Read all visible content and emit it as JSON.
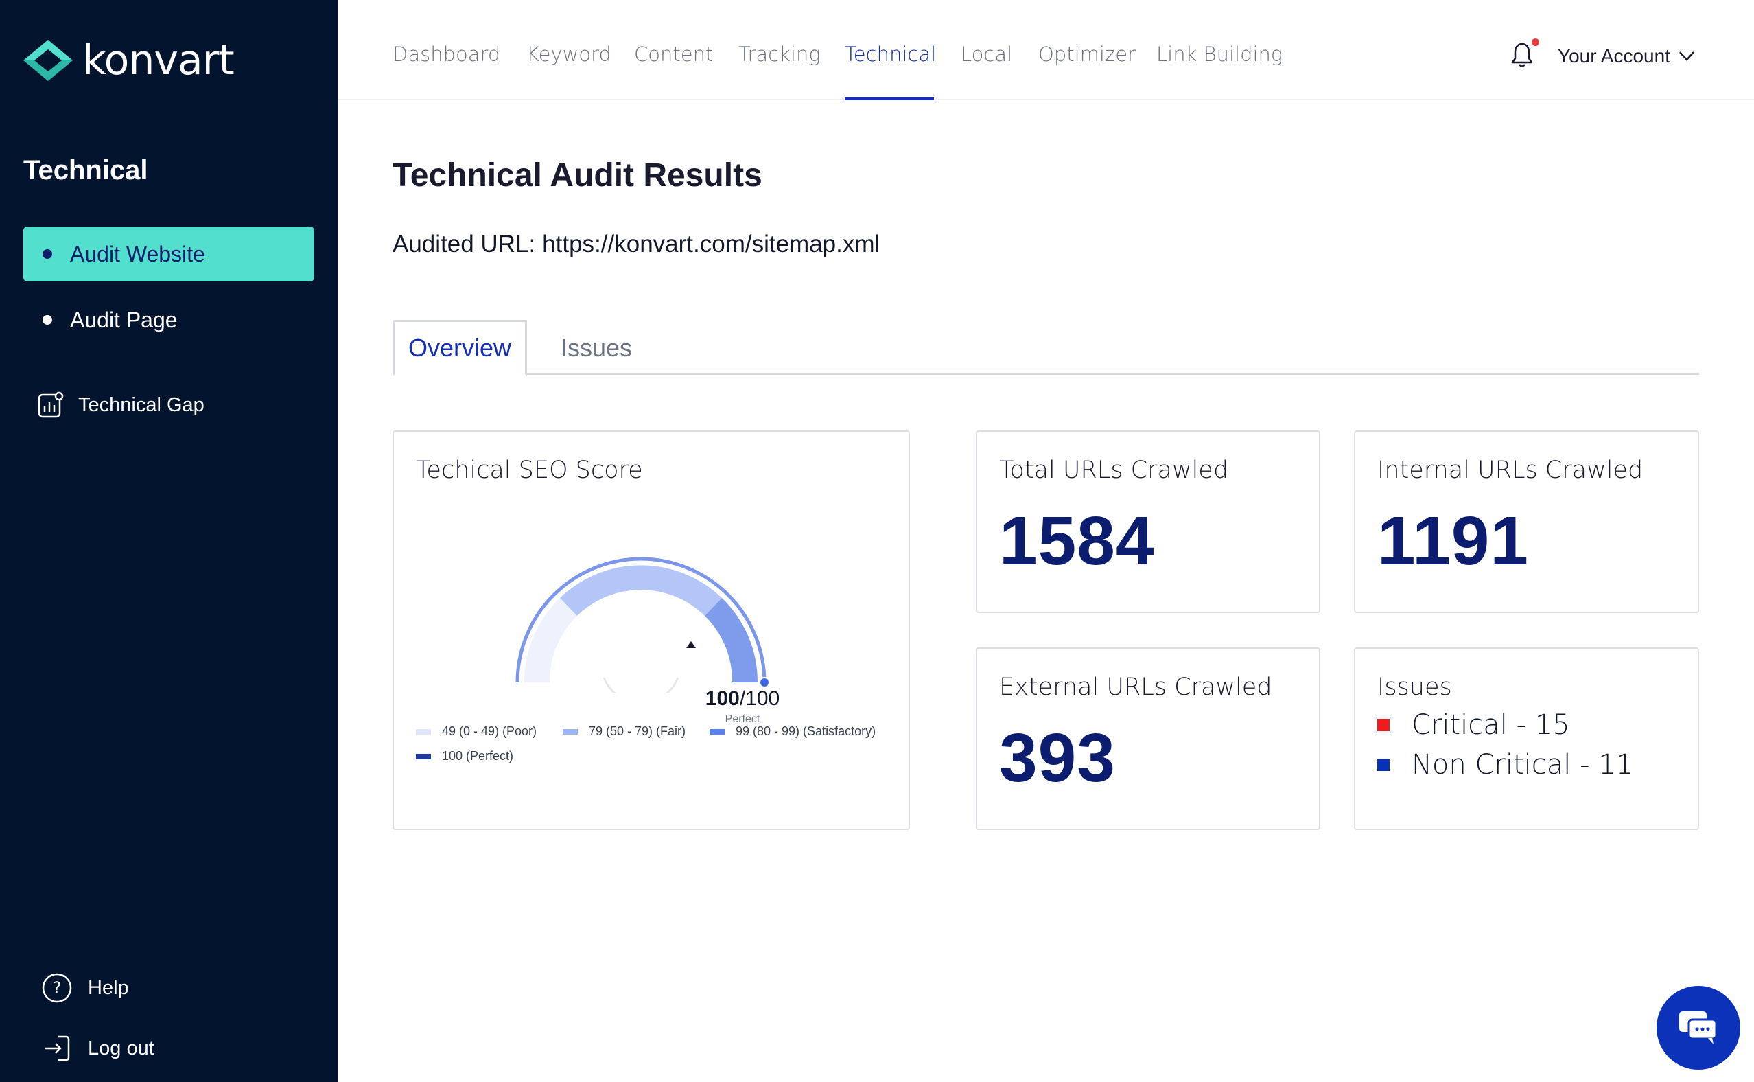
{
  "brand": {
    "name": "konvart",
    "accent": "#53dfcd",
    "sidebar_bg": "#03142e",
    "primary": "#1530b8"
  },
  "sidebar": {
    "heading": "Technical",
    "items": [
      {
        "label": "Audit Website",
        "active": true
      },
      {
        "label": "Audit Page",
        "active": false
      }
    ],
    "gap_item": {
      "label": "Technical Gap",
      "icon": "chart-icon"
    },
    "bottom": [
      {
        "label": "Help",
        "icon": "help-icon"
      },
      {
        "label": "Log out",
        "icon": "logout-icon"
      }
    ]
  },
  "nav": {
    "items": [
      "Dashboard",
      "Keyword",
      "Content",
      "Tracking",
      "Technical",
      "Local",
      "Optimizer",
      "Link Building"
    ],
    "active": "Technical",
    "account_label": "Your Account"
  },
  "main": {
    "title": "Technical Audit Results",
    "audited_label": "Audited URL:",
    "audited_url": "https://konvart.com/sitemap.xml",
    "tabs": [
      {
        "label": "Overview",
        "active": true
      },
      {
        "label": "Issues",
        "active": false
      }
    ]
  },
  "score_card": {
    "title": "Techical SEO Score",
    "score": "100",
    "max": "/100",
    "rating": "Perfect",
    "score_value": 100,
    "legend": [
      {
        "label": "49 (0 - 49) (Poor)",
        "color": "#dde6fb"
      },
      {
        "label": "79 (50 - 79) (Fair)",
        "color": "#9cb6f5"
      },
      {
        "label": "99 (80 - 99) (Satisfactory)",
        "color": "#5b82ea"
      },
      {
        "label": "100 (Perfect)",
        "color": "#1f3a9a"
      }
    ]
  },
  "stats": {
    "total": {
      "title": "Total URLs Crawled",
      "value": "1584"
    },
    "internal": {
      "title": "Internal URLs Crawled",
      "value": "1191"
    },
    "external": {
      "title": "External URLs Crawled",
      "value": "393"
    }
  },
  "issues_card": {
    "title": "Issues",
    "rows": [
      {
        "label": "Critical - 15",
        "color": "#ee1c1c"
      },
      {
        "label": "Non Critical - 11",
        "color": "#0b2fb5"
      }
    ]
  },
  "chat": {
    "icon": "chat-icon"
  }
}
